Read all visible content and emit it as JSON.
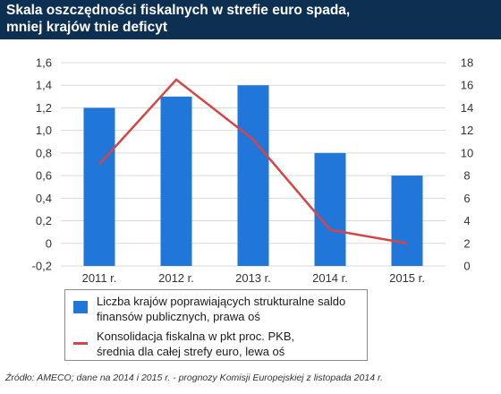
{
  "title": {
    "line1": "Skala oszczędności fiskalnych w strefie euro spada,",
    "line2": "mniej krajów tnie deficyt"
  },
  "legend": {
    "bars_line1": "Liczba krajów poprawiających strukturalne saldo",
    "bars_line2": "finansów publicznych, prawa oś",
    "line_line1": "Konsolidacja fiskalna w pkt proc. PKB,",
    "line_line2": "średnia dla całej strefy euro, lewa oś"
  },
  "source": "Źródło: AMECO; dane na 2014 i 2015 r. - prognozy Komisji Europejskiej z listopada 2014 r.",
  "colors": {
    "bars": "#2176d9",
    "line": "#d64545",
    "title_background": "#0d2f52",
    "gridline": "#d9d9d9"
  },
  "chart_data": {
    "type": "bar",
    "categories": [
      "2011 r.",
      "2012 r.",
      "2013 r.",
      "2014 r.",
      "2015 r."
    ],
    "series": [
      {
        "name": "Liczba krajów poprawiających strukturalne saldo finansów publicznych, prawa oś",
        "type": "bar",
        "axis": "right",
        "values": [
          14,
          15,
          16,
          10,
          8
        ]
      },
      {
        "name": "Konsolidacja fiskalna w pkt proc. PKB, średnia dla całej strefy euro, lewa oś",
        "type": "line",
        "axis": "left",
        "values": [
          0.7,
          1.45,
          0.92,
          0.12,
          0.0
        ]
      }
    ],
    "left_axis": {
      "ylim": [
        -0.2,
        1.6
      ],
      "ticks": [
        "-0,2",
        "0",
        "0,2",
        "0,4",
        "0,6",
        "0,8",
        "1,0",
        "1,2",
        "1,4",
        "1,6"
      ]
    },
    "right_axis": {
      "ylim": [
        0,
        18
      ],
      "ticks": [
        "0",
        "2",
        "4",
        "6",
        "8",
        "10",
        "12",
        "14",
        "16",
        "18"
      ]
    },
    "grid": true,
    "legend_position": "bottom-left"
  }
}
